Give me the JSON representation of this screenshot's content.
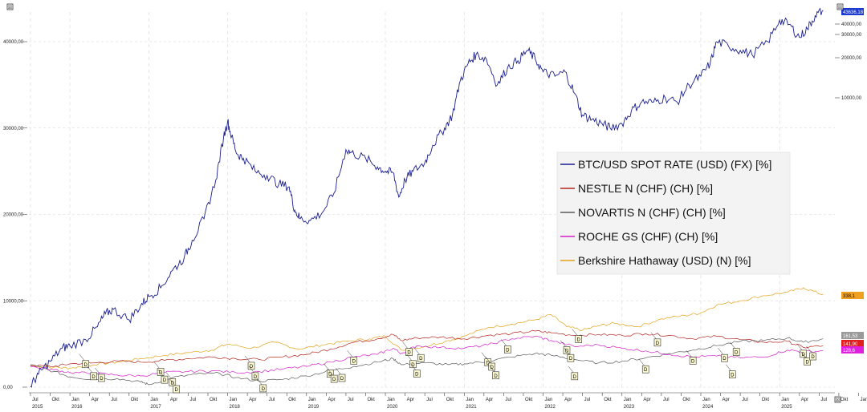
{
  "chart_data": {
    "type": "line",
    "left_axis": {
      "ticks": [
        "0,00",
        "10000,00",
        "20000,00",
        "30000,00",
        "40000,00"
      ],
      "ylim": [
        0,
        44000
      ]
    },
    "right_axis": {
      "ticks": [
        "10000,00",
        "20000,00",
        "30000,00",
        "40000,00"
      ]
    },
    "x_axis": {
      "month_ticks": [
        "Jul",
        "Okt",
        "Jan",
        "Apr",
        "Jul",
        "Okt",
        "Jan",
        "Apr",
        "Jul",
        "Okt",
        "Jan",
        "Apr",
        "Jul",
        "Okt",
        "Jan",
        "Apr",
        "Jul",
        "Okt",
        "Jan",
        "Apr",
        "Jul",
        "Okt",
        "Jan",
        "Apr",
        "Jul",
        "Okt",
        "Jan",
        "Apr",
        "Jul",
        "Okt",
        "Jan",
        "Apr",
        "Jul",
        "Okt",
        "Jan",
        "Apr",
        "Jul",
        "Okt",
        "Jan",
        "Apr",
        "Jul",
        "Okt",
        "Jan",
        "Apr"
      ],
      "year_labels": [
        "2015",
        "2016",
        "2017",
        "2018",
        "2019",
        "2020",
        "2021",
        "2022",
        "2023",
        "2024",
        "2025"
      ]
    },
    "series": [
      {
        "name": "BTC/USD SPOT RATE (USD) (FX) [%]",
        "color": "#1b1f8f",
        "last_label": "43636,18",
        "points": [
          [
            2015.5,
            100
          ],
          [
            2015.6,
            1500
          ],
          [
            2015.75,
            3000
          ],
          [
            2015.9,
            4500
          ],
          [
            2016.0,
            4800
          ],
          [
            2016.2,
            5500
          ],
          [
            2016.35,
            7000
          ],
          [
            2016.45,
            8500
          ],
          [
            2016.55,
            9000
          ],
          [
            2016.75,
            7800
          ],
          [
            2016.9,
            9500
          ],
          [
            2017.0,
            10500
          ],
          [
            2017.15,
            11500
          ],
          [
            2017.3,
            13500
          ],
          [
            2017.45,
            15000
          ],
          [
            2017.55,
            17000
          ],
          [
            2017.7,
            19500
          ],
          [
            2017.85,
            24000
          ],
          [
            2017.95,
            29000
          ],
          [
            2018.0,
            30800
          ],
          [
            2018.05,
            29000
          ],
          [
            2018.12,
            27000
          ],
          [
            2018.2,
            26500
          ],
          [
            2018.35,
            25000
          ],
          [
            2018.5,
            24500
          ],
          [
            2018.65,
            23500
          ],
          [
            2018.78,
            23200
          ],
          [
            2018.85,
            20500
          ],
          [
            2018.92,
            19500
          ],
          [
            2019.05,
            19300
          ],
          [
            2019.2,
            20200
          ],
          [
            2019.35,
            22500
          ],
          [
            2019.5,
            27500
          ],
          [
            2019.6,
            27000
          ],
          [
            2019.75,
            26500
          ],
          [
            2019.9,
            25500
          ],
          [
            2020.0,
            25000
          ],
          [
            2020.1,
            24800
          ],
          [
            2020.17,
            22000
          ],
          [
            2020.25,
            24000
          ],
          [
            2020.35,
            25000
          ],
          [
            2020.5,
            26000
          ],
          [
            2020.6,
            28000
          ],
          [
            2020.75,
            30000
          ],
          [
            2020.85,
            31500
          ],
          [
            2020.95,
            35500
          ],
          [
            2021.05,
            37500
          ],
          [
            2021.15,
            38500
          ],
          [
            2021.28,
            38000
          ],
          [
            2021.42,
            35000
          ],
          [
            2021.55,
            37000
          ],
          [
            2021.68,
            37800
          ],
          [
            2021.8,
            39000
          ],
          [
            2021.9,
            38000
          ],
          [
            2022.0,
            36500
          ],
          [
            2022.15,
            36000
          ],
          [
            2022.28,
            36500
          ],
          [
            2022.4,
            34000
          ],
          [
            2022.5,
            31500
          ],
          [
            2022.62,
            31000
          ],
          [
            2022.75,
            30500
          ],
          [
            2022.85,
            30000
          ],
          [
            2023.0,
            30500
          ],
          [
            2023.12,
            32000
          ],
          [
            2023.25,
            33000
          ],
          [
            2023.4,
            33000
          ],
          [
            2023.55,
            33500
          ],
          [
            2023.7,
            33000
          ],
          [
            2023.85,
            35000
          ],
          [
            2024.0,
            36000
          ],
          [
            2024.12,
            37500
          ],
          [
            2024.2,
            40000
          ],
          [
            2024.35,
            39500
          ],
          [
            2024.5,
            39000
          ],
          [
            2024.65,
            38500
          ],
          [
            2024.85,
            40000
          ],
          [
            2025.0,
            42500
          ],
          [
            2025.12,
            42000
          ],
          [
            2025.25,
            40500
          ],
          [
            2025.35,
            41500
          ],
          [
            2025.45,
            43000
          ],
          [
            2025.55,
            43636
          ]
        ]
      },
      {
        "name": "NESTLE N (CHF) (CH) [%]",
        "color": "#b3261e",
        "last_label": "141,90",
        "points": [
          [
            2015.5,
            2500
          ],
          [
            2015.8,
            2400
          ],
          [
            2016.0,
            2700
          ],
          [
            2016.3,
            2800
          ],
          [
            2016.6,
            3000
          ],
          [
            2016.9,
            2900
          ],
          [
            2017.2,
            3100
          ],
          [
            2017.5,
            3300
          ],
          [
            2017.8,
            3500
          ],
          [
            2018.1,
            3300
          ],
          [
            2018.4,
            3200
          ],
          [
            2018.7,
            3500
          ],
          [
            2019.0,
            3800
          ],
          [
            2019.3,
            4400
          ],
          [
            2019.6,
            5200
          ],
          [
            2019.9,
            5600
          ],
          [
            2020.1,
            6100
          ],
          [
            2020.2,
            5400
          ],
          [
            2020.4,
            5700
          ],
          [
            2020.7,
            5800
          ],
          [
            2021.0,
            5600
          ],
          [
            2021.3,
            6000
          ],
          [
            2021.6,
            6200
          ],
          [
            2021.9,
            6500
          ],
          [
            2022.1,
            6300
          ],
          [
            2022.4,
            6000
          ],
          [
            2022.7,
            6100
          ],
          [
            2023.0,
            6000
          ],
          [
            2023.3,
            6200
          ],
          [
            2023.6,
            6000
          ],
          [
            2023.9,
            5600
          ],
          [
            2024.2,
            5900
          ],
          [
            2024.5,
            5500
          ],
          [
            2024.8,
            5200
          ],
          [
            2025.1,
            5300
          ],
          [
            2025.3,
            4600
          ],
          [
            2025.55,
            4800
          ]
        ]
      },
      {
        "name": "NOVARTIS N (CHF) (CH) [%]",
        "color": "#5a5a5a",
        "last_label": "161,53",
        "points": [
          [
            2015.5,
            2600
          ],
          [
            2015.8,
            1800
          ],
          [
            2016.0,
            1200
          ],
          [
            2016.3,
            900
          ],
          [
            2016.6,
            1000
          ],
          [
            2016.9,
            600
          ],
          [
            2017.0,
            300
          ],
          [
            2017.3,
            1100
          ],
          [
            2017.6,
            1500
          ],
          [
            2017.9,
            1600
          ],
          [
            2018.1,
            1100
          ],
          [
            2018.4,
            700
          ],
          [
            2018.7,
            900
          ],
          [
            2019.0,
            1300
          ],
          [
            2019.3,
            1900
          ],
          [
            2019.6,
            2400
          ],
          [
            2019.9,
            2900
          ],
          [
            2020.1,
            3300
          ],
          [
            2020.2,
            2600
          ],
          [
            2020.5,
            2800
          ],
          [
            2020.8,
            2600
          ],
          [
            2021.0,
            2700
          ],
          [
            2021.3,
            3000
          ],
          [
            2021.6,
            3500
          ],
          [
            2021.9,
            3900
          ],
          [
            2022.1,
            3700
          ],
          [
            2022.4,
            3200
          ],
          [
            2022.7,
            2800
          ],
          [
            2023.0,
            3000
          ],
          [
            2023.3,
            3400
          ],
          [
            2023.6,
            3900
          ],
          [
            2023.9,
            4300
          ],
          [
            2024.2,
            4800
          ],
          [
            2024.5,
            5300
          ],
          [
            2024.8,
            5400
          ],
          [
            2025.1,
            5700
          ],
          [
            2025.3,
            5200
          ],
          [
            2025.55,
            5600
          ]
        ]
      },
      {
        "name": "ROCHE GS (CHF) (CH) [%]",
        "color": "#d11fc9",
        "last_label": "128,6",
        "points": [
          [
            2015.5,
            2400
          ],
          [
            2015.8,
            2000
          ],
          [
            2016.0,
            1700
          ],
          [
            2016.3,
            1600
          ],
          [
            2016.6,
            1400
          ],
          [
            2016.9,
            1300
          ],
          [
            2017.2,
            1700
          ],
          [
            2017.5,
            1800
          ],
          [
            2017.8,
            1900
          ],
          [
            2018.1,
            1700
          ],
          [
            2018.4,
            1800
          ],
          [
            2018.7,
            2100
          ],
          [
            2019.0,
            2400
          ],
          [
            2019.3,
            2900
          ],
          [
            2019.6,
            3500
          ],
          [
            2019.9,
            3800
          ],
          [
            2020.1,
            4500
          ],
          [
            2020.2,
            3900
          ],
          [
            2020.4,
            4800
          ],
          [
            2020.7,
            4600
          ],
          [
            2021.0,
            4500
          ],
          [
            2021.3,
            4900
          ],
          [
            2021.6,
            5600
          ],
          [
            2021.9,
            5900
          ],
          [
            2022.1,
            5400
          ],
          [
            2022.4,
            4700
          ],
          [
            2022.7,
            4900
          ],
          [
            2023.0,
            4500
          ],
          [
            2023.3,
            4200
          ],
          [
            2023.6,
            3800
          ],
          [
            2023.9,
            3500
          ],
          [
            2024.2,
            3600
          ],
          [
            2024.5,
            3400
          ],
          [
            2024.8,
            3500
          ],
          [
            2025.1,
            4300
          ],
          [
            2025.3,
            4100
          ],
          [
            2025.55,
            4200
          ]
        ]
      },
      {
        "name": "Berkshire Hathaway (USD) (N) [%]",
        "color": "#e3a21a",
        "last_label": "338,1",
        "points": [
          [
            2015.5,
            2500
          ],
          [
            2015.8,
            2300
          ],
          [
            2016.0,
            2200
          ],
          [
            2016.3,
            2600
          ],
          [
            2016.6,
            2900
          ],
          [
            2016.9,
            3300
          ],
          [
            2017.2,
            3700
          ],
          [
            2017.5,
            4000
          ],
          [
            2017.8,
            4300
          ],
          [
            2018.0,
            5000
          ],
          [
            2018.3,
            4500
          ],
          [
            2018.6,
            5200
          ],
          [
            2018.9,
            4400
          ],
          [
            2019.2,
            4900
          ],
          [
            2019.5,
            5300
          ],
          [
            2019.8,
            5600
          ],
          [
            2020.0,
            5900
          ],
          [
            2020.2,
            4300
          ],
          [
            2020.5,
            4700
          ],
          [
            2020.8,
            5400
          ],
          [
            2021.0,
            5900
          ],
          [
            2021.3,
            6900
          ],
          [
            2021.6,
            7300
          ],
          [
            2021.9,
            7800
          ],
          [
            2022.1,
            8400
          ],
          [
            2022.3,
            7000
          ],
          [
            2022.5,
            6600
          ],
          [
            2022.7,
            7100
          ],
          [
            2022.9,
            7400
          ],
          [
            2023.2,
            7000
          ],
          [
            2023.5,
            7900
          ],
          [
            2023.8,
            8300
          ],
          [
            2024.0,
            8600
          ],
          [
            2024.2,
            9500
          ],
          [
            2024.5,
            10000
          ],
          [
            2024.8,
            10600
          ],
          [
            2025.1,
            11000
          ],
          [
            2025.3,
            11500
          ],
          [
            2025.55,
            10700
          ]
        ]
      }
    ],
    "dividend_marker_label": "D",
    "legend_placement": "center-right",
    "grid": true
  }
}
